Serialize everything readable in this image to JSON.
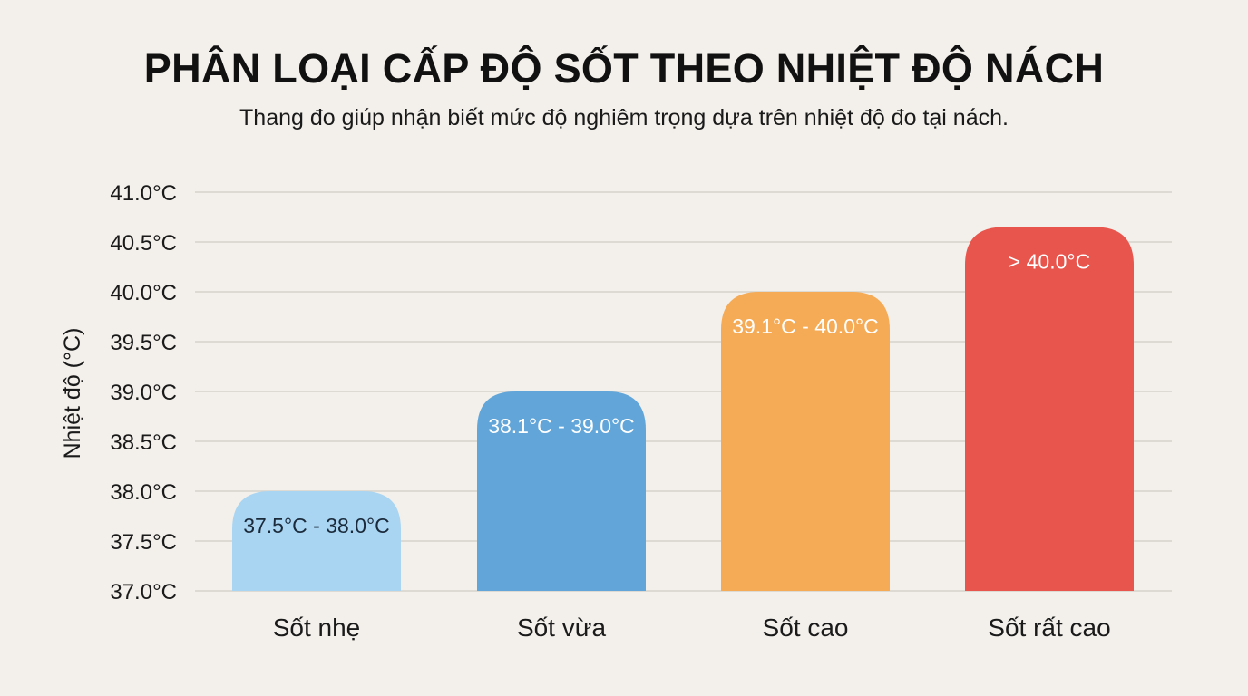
{
  "chart_data": {
    "type": "bar",
    "title": "PHÂN LOẠI CẤP ĐỘ SỐT THEO NHIỆT ĐỘ NÁCH",
    "subtitle": "Thang đo giúp nhận biết mức độ nghiêm trọng dựa trên nhiệt độ đo tại nách.",
    "xlabel": "",
    "ylabel": "Nhiệt độ (°C)",
    "ylim": [
      37.0,
      41.0
    ],
    "yticks": [
      "37.0°C",
      "37.5°C",
      "38.0°C",
      "38.5°C",
      "39.0°C",
      "39.5°C",
      "40.0°C",
      "40.5°C",
      "41.0°C"
    ],
    "grid": true,
    "categories": [
      "Sốt nhẹ",
      "Sốt vừa",
      "Sốt cao",
      "Sốt rất cao"
    ],
    "values": [
      38.0,
      39.0,
      40.0,
      40.65
    ],
    "data_labels": [
      "37.5°C - 38.0°C",
      "38.1°C - 39.0°C",
      "39.1°C - 40.0°C",
      "> 40.0°C"
    ],
    "colors": [
      "#a9d5f2",
      "#62a6d9",
      "#f5aa55",
      "#e8554d"
    ],
    "label_colors": [
      "#1a2a3a",
      "#ffffff",
      "#ffffff",
      "#ffffff"
    ]
  }
}
